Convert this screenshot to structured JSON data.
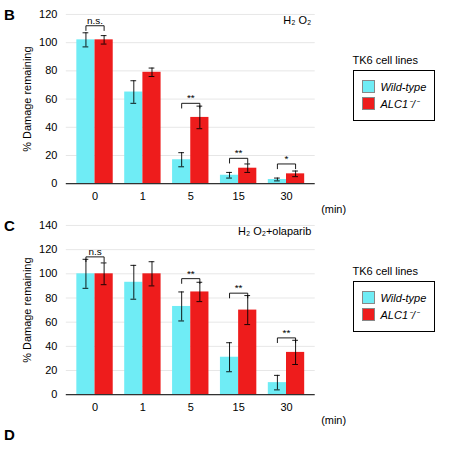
{
  "chart_data": [
    {
      "type": "bar",
      "panel_label": "B",
      "title": "H₂ O₂",
      "ylabel": "% Damage remaining",
      "xlabel": "(min)",
      "categories": [
        "0",
        "1",
        "5",
        "15",
        "30"
      ],
      "series": [
        {
          "name": "Wild-type",
          "color": "#6FECF5",
          "values": [
            102,
            65,
            17,
            6,
            3
          ],
          "errors": [
            5,
            8,
            5,
            2,
            1
          ]
        },
        {
          "name": "ALC1⁻/⁻",
          "color": "#EE1C1C",
          "values": [
            102,
            79,
            47,
            11,
            7
          ],
          "errors": [
            3,
            3,
            8,
            3,
            2
          ]
        }
      ],
      "significance": [
        {
          "category": "0",
          "label": "n.s.",
          "y": 112
        },
        {
          "category": "5",
          "label": "**",
          "y": 57
        },
        {
          "category": "15",
          "label": "**",
          "y": 18
        },
        {
          "category": "30",
          "label": "*",
          "y": 14
        }
      ],
      "ylim": [
        0,
        120
      ],
      "yticks": [
        0,
        20,
        40,
        60,
        80,
        100,
        120
      ],
      "grid": true,
      "legend": "right",
      "legend_title": "TK6 cell lines"
    },
    {
      "type": "bar",
      "panel_label": "C",
      "title": "H₂ O₂+olaparib",
      "ylabel": "% Damage remaining",
      "xlabel": "(min)",
      "categories": [
        "0",
        "1",
        "5",
        "15",
        "30"
      ],
      "series": [
        {
          "name": "Wild-type",
          "color": "#6FECF5",
          "values": [
            100,
            93,
            73,
            31,
            10
          ],
          "errors": [
            12,
            14,
            12,
            12,
            6
          ]
        },
        {
          "name": "ALC1⁻/⁻",
          "color": "#EE1C1C",
          "values": [
            100,
            100,
            85,
            70,
            35
          ],
          "errors": [
            9,
            10,
            8,
            12,
            10
          ]
        }
      ],
      "significance": [
        {
          "category": "0",
          "label": "n.s",
          "y": 114
        },
        {
          "category": "5",
          "label": "**",
          "y": 96
        },
        {
          "category": "15",
          "label": "**",
          "y": 84
        },
        {
          "category": "30",
          "label": "**",
          "y": 47
        }
      ],
      "ylim": [
        0,
        140
      ],
      "yticks": [
        0,
        20,
        40,
        60,
        80,
        100,
        120,
        140
      ],
      "grid": true,
      "legend": "right",
      "legend_title": "TK6 cell lines"
    }
  ],
  "annotations": [
    "D"
  ]
}
